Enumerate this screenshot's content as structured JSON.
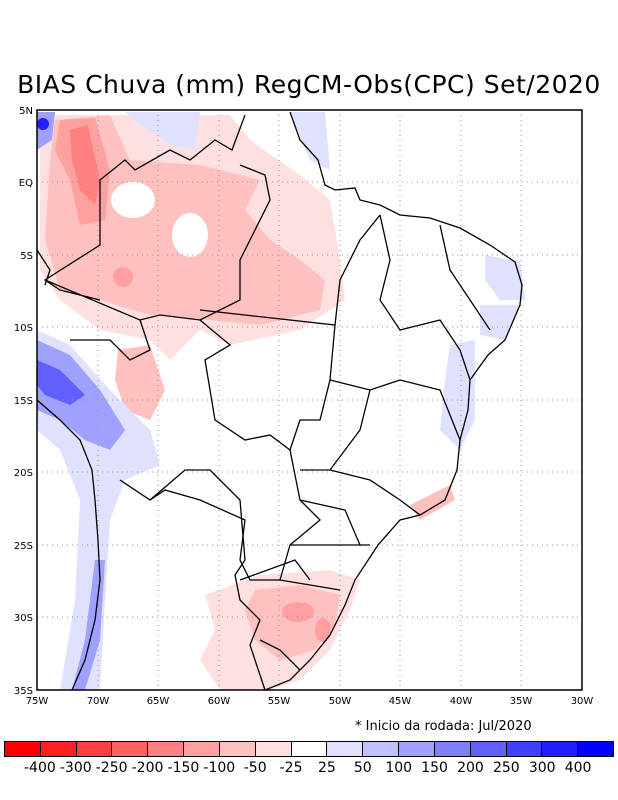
{
  "title": "BIAS Chuva (mm) RegCM-Obs(CPC) Set/2020",
  "note": "* Inicio da rodada: Jul/2020",
  "map": {
    "lon_range": [
      -75,
      -30
    ],
    "lat_range": [
      -35,
      5
    ],
    "x_ticks": [
      "75W",
      "70W",
      "65W",
      "60W",
      "55W",
      "50W",
      "45W",
      "40W",
      "35W",
      "30W"
    ],
    "y_ticks": [
      "5N",
      "EQ",
      "5S",
      "10S",
      "15S",
      "20S",
      "25S",
      "30S",
      "35S"
    ]
  },
  "colorbar": {
    "colors": [
      "#ff0000",
      "#ff2020",
      "#ff4040",
      "#ff6060",
      "#ff8080",
      "#ffa0a0",
      "#ffc0c0",
      "#ffe0e0",
      "#ffffff",
      "#e0e0ff",
      "#c0c0ff",
      "#a0a0ff",
      "#8080ff",
      "#6060ff",
      "#4040ff",
      "#2020ff",
      "#0000ff"
    ],
    "labels": [
      "-400",
      "-300",
      "-250",
      "-200",
      "-150",
      "-100",
      "-50",
      "-25",
      "25",
      "50",
      "100",
      "150",
      "200",
      "250",
      "300",
      "400"
    ]
  }
}
